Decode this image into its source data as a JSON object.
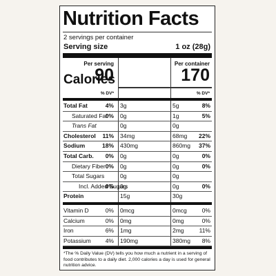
{
  "title": "Nutrition Facts",
  "servings": "2 servings per container",
  "serving_size": {
    "label": "Serving size",
    "value": "1 oz (28g)"
  },
  "columns": [
    "Per serving",
    "Per container"
  ],
  "calories": {
    "label": "Calories",
    "values": [
      "90",
      "170"
    ]
  },
  "dv_header": [
    "% DV*",
    "% DV*"
  ],
  "rows": [
    {
      "name": "Total Fat",
      "serving": [
        "3g",
        "4%"
      ],
      "container": [
        "5g",
        "8%"
      ]
    },
    {
      "name": "Saturated Fat",
      "serving": [
        "0g",
        "0%"
      ],
      "container": [
        "1g",
        "5%"
      ]
    },
    {
      "name": "Trans Fat",
      "serving": [
        "0g"
      ],
      "container": [
        "0g"
      ]
    },
    {
      "name": "Cholesterol",
      "serving": [
        "34mg",
        "11%"
      ],
      "container": [
        "68mg",
        "22%"
      ]
    },
    {
      "name": "Sodium",
      "serving": [
        "430mg",
        "18%"
      ],
      "container": [
        "860mg",
        "37%"
      ]
    },
    {
      "name": "Total Carb.",
      "serving": [
        "0g",
        "0%"
      ],
      "container": [
        "0g",
        "0%"
      ]
    },
    {
      "name": "Dietary Fiber",
      "serving": [
        "0g",
        "0%"
      ],
      "container": [
        "0g",
        "0%"
      ]
    },
    {
      "name": "Total Sugars",
      "serving": [
        "0g"
      ],
      "container": [
        "0g"
      ]
    },
    {
      "name": "Incl. Added Sugars",
      "serving": [
        "0g",
        "0%"
      ],
      "container": [
        "0g",
        "0%"
      ]
    },
    {
      "name": "Protein",
      "serving": [
        "15g"
      ],
      "container": [
        "30g"
      ]
    },
    {
      "name": "Vitamin D",
      "serving": [
        "0mcg",
        "0%"
      ],
      "container": [
        "0mcg",
        "0%"
      ]
    },
    {
      "name": "Calcium",
      "serving": [
        "0mg",
        "0%"
      ],
      "container": [
        "0mg",
        "0%"
      ]
    },
    {
      "name": "Iron",
      "serving": [
        "1mg",
        "6%"
      ],
      "container": [
        "2mg",
        "11%"
      ]
    },
    {
      "name": "Potassium",
      "serving": [
        "190mg",
        "4%"
      ],
      "container": [
        "380mg",
        "8%"
      ]
    }
  ],
  "footnote": "*The % Daily Value (DV) tells you how much a nutrient in a serving of food contributes to a daily diet. 2,000 calories a day is used for general nutrition advice."
}
